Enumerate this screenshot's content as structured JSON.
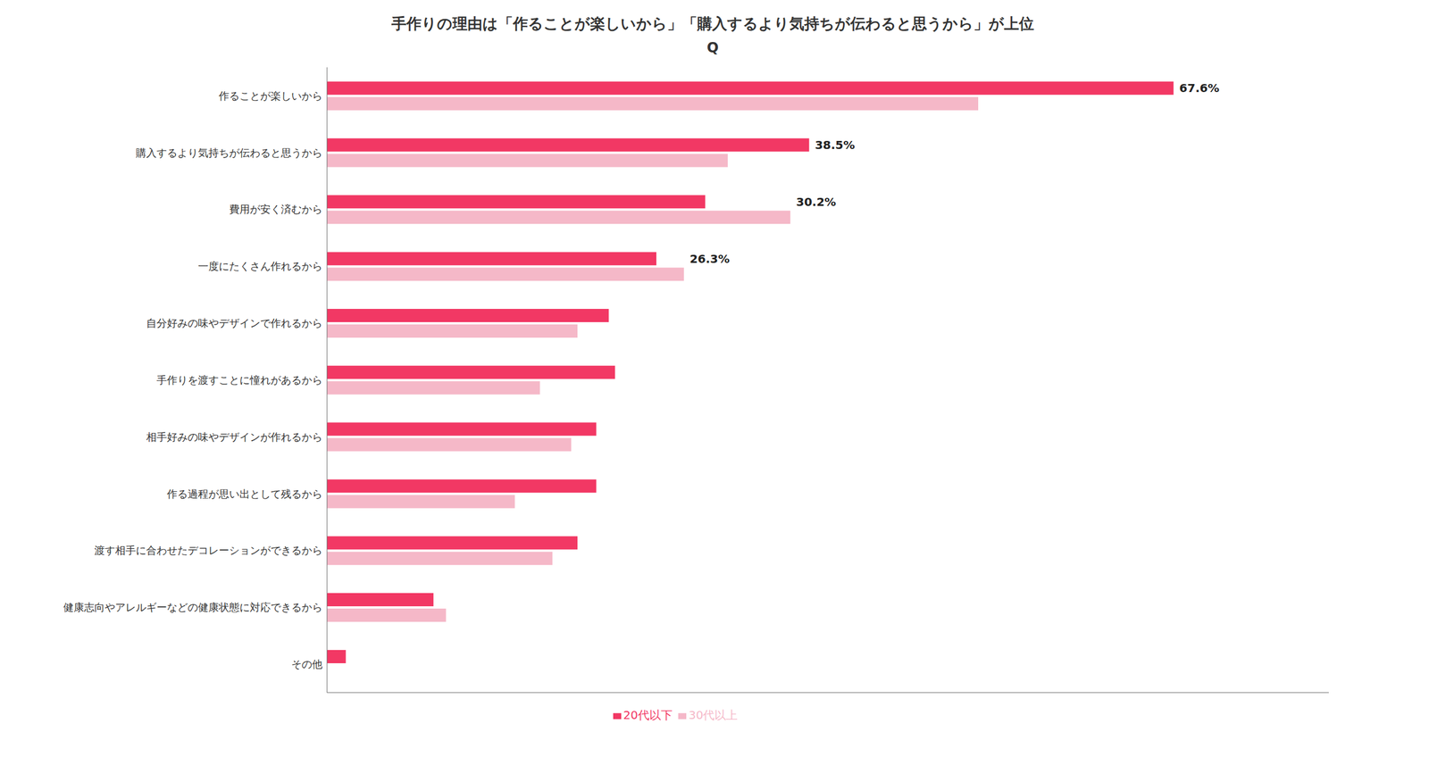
{
  "chart_data": {
    "type": "bar",
    "orientation": "horizontal",
    "title": "手作りの理由は「作ることが楽しいから」「購入するより気持ちが伝わると思うから」が上位",
    "subtitle": "Q",
    "categories": [
      "作ることが楽しいから",
      "購入するより気持ちが伝わると思うから",
      "費用が安く済むから",
      "一度にたくさん作れるから",
      "自分好みの味やデザインで作れるから",
      "手作りを渡すことに憧れがあるから",
      "相手好みの味やデザインが作れるから",
      "作る過程が思い出として残るから",
      "渡す相手に合わせたデコレーションができるから",
      "健康志向やアレルギーなどの健康状態に対応できるから",
      "その他"
    ],
    "series": [
      {
        "name": "20代以下",
        "color": "#F23864",
        "values": [
          67.6,
          38.5,
          30.2,
          26.3,
          22.5,
          23.0,
          21.5,
          21.5,
          20.0,
          8.5,
          1.5
        ],
        "value_labels": [
          "67.6%",
          "38.5%",
          "30.2%",
          "26.3%",
          null,
          null,
          null,
          null,
          null,
          null,
          null
        ]
      },
      {
        "name": "30代以上",
        "color": "#F5B8C8",
        "values": [
          52.0,
          32.0,
          37.0,
          28.5,
          20.0,
          17.0,
          19.5,
          15.0,
          18.0,
          9.5,
          0.0
        ]
      }
    ],
    "xlim": [
      0,
      80
    ],
    "tick_labels": "y",
    "legend": "bottom",
    "grid": false
  }
}
